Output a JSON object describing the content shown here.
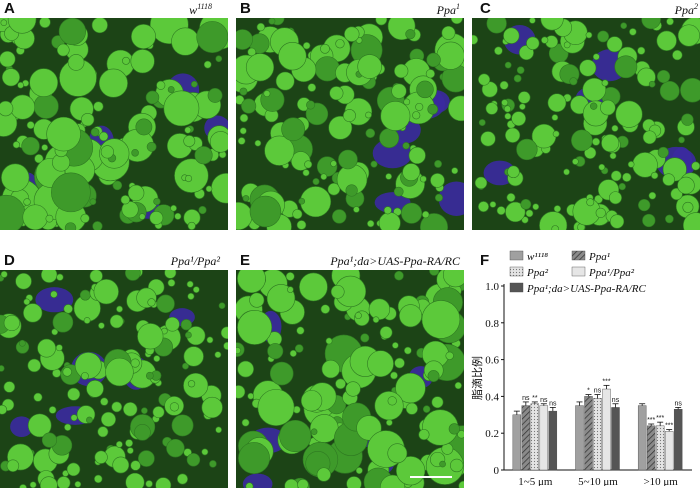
{
  "panels": [
    {
      "letter": "A",
      "genotype": "w",
      "sup": "1118"
    },
    {
      "letter": "B",
      "genotype": "Ppa",
      "sup": "1"
    },
    {
      "letter": "C",
      "genotype": "Ppa",
      "sup": "2"
    },
    {
      "letter": "D",
      "genotype": "Ppa¹/Ppa²",
      "sup": ""
    },
    {
      "letter": "E",
      "genotype": "Ppa¹;da>UAS-Ppa-RA/RC",
      "sup": ""
    },
    {
      "letter": "F",
      "genotype": "",
      "sup": ""
    }
  ],
  "colors": {
    "droplet": "#5cc93a",
    "droplet_dark": "#3e9a2a",
    "background": "#1c4416",
    "nucleus": "#3b2aa0"
  },
  "chart_data": {
    "type": "bar",
    "ylabel": "脂滴比例",
    "ylim": [
      0,
      1.0
    ],
    "yticks": [
      "0",
      "0.2",
      "0.4",
      "0.6",
      "0.8",
      "1.0"
    ],
    "categories": [
      "1~5 μm",
      "5~10 μm",
      ">10 μm"
    ],
    "legend_position": "top",
    "series": [
      {
        "name": "w¹¹¹⁸",
        "color": "#a0a0a0",
        "pattern": "solid",
        "values": [
          0.3,
          0.35,
          0.35
        ],
        "errors": [
          0.02,
          0.02,
          0.01
        ],
        "sig": [
          "",
          "",
          ""
        ]
      },
      {
        "name": "Ppa¹",
        "color": "#6a6a6a",
        "pattern": "hatch",
        "values": [
          0.35,
          0.4,
          0.24
        ],
        "errors": [
          0.02,
          0.01,
          0.01
        ],
        "sig": [
          "ns",
          "*",
          "***"
        ]
      },
      {
        "name": "Ppa²",
        "color": "#d8d8d8",
        "pattern": "dots",
        "values": [
          0.36,
          0.39,
          0.24
        ],
        "errors": [
          0.01,
          0.02,
          0.02
        ],
        "sig": [
          "**",
          "ns",
          "***"
        ]
      },
      {
        "name": "Ppa¹/Ppa²",
        "color": "#e6e6e6",
        "pattern": "solid",
        "values": [
          0.35,
          0.44,
          0.21
        ],
        "errors": [
          0.01,
          0.02,
          0.01
        ],
        "sig": [
          "ns",
          "***",
          "***"
        ]
      },
      {
        "name": "Ppa¹;da>UAS-Ppa-RA/RC",
        "color": "#555555",
        "pattern": "solid",
        "values": [
          0.32,
          0.34,
          0.33
        ],
        "errors": [
          0.02,
          0.02,
          0.01
        ],
        "sig": [
          "ns",
          "ns",
          "ns"
        ]
      }
    ]
  }
}
